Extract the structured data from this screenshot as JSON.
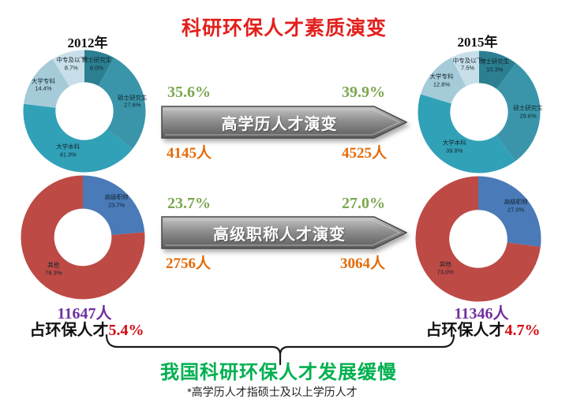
{
  "title": {
    "text": "科研环保人才素质演变"
  },
  "years": {
    "left": "2012年",
    "right": "2015年"
  },
  "arrows": [
    {
      "label": "高学历人才演变",
      "left_pct": "35.6%",
      "right_pct": "39.9%",
      "left_count": "4145人",
      "right_count": "4525人"
    },
    {
      "label": "高级职称人才演变",
      "left_pct": "23.7%",
      "right_pct": "27.0%",
      "left_count": "2756人",
      "right_count": "3064人"
    }
  ],
  "totals": {
    "left": {
      "count": "11647人",
      "share_label": "占环保人才",
      "share_value": "5.4%"
    },
    "right": {
      "count": "11346人",
      "share_label": "占环保人才",
      "share_value": "4.7%"
    }
  },
  "conclusion": "我国科研环保人才发展缓慢",
  "footnote": "*高学历人才指硕士及以上学历人才",
  "palette": {
    "title_red": "#e2201c",
    "pct_green": "#7ca750",
    "count_orange": "#e36c09",
    "total_purple": "#7030a0",
    "share_red": "#d20a10",
    "conclusion_green": "#00b050",
    "arrow_gray": "#8f8f8f"
  },
  "chart_data": [
    {
      "type": "pie",
      "title": "2012年",
      "hole": 0.47,
      "legend_position": "none",
      "labels": [
        "博士研究生",
        "硕士研究生",
        "大学本科",
        "大学专科",
        "中专及以下"
      ],
      "values": [
        8.0,
        27.6,
        41.3,
        14.4,
        8.7
      ],
      "colors": [
        "#2b7f91",
        "#3a95aa",
        "#31a1b7",
        "#a5cbd9",
        "#c8dfe9"
      ]
    },
    {
      "type": "pie",
      "title": "2015年",
      "hole": 0.47,
      "legend_position": "none",
      "labels": [
        "博士研究生",
        "硕士研究生",
        "大学本科",
        "大学专科",
        "中专及以下"
      ],
      "values": [
        10.3,
        29.6,
        39.8,
        12.8,
        7.5
      ],
      "colors": [
        "#2b7f91",
        "#3a95aa",
        "#31a1b7",
        "#a5cbd9",
        "#c8dfe9"
      ]
    },
    {
      "type": "pie",
      "title": "2012年",
      "hole": 0.46,
      "legend_position": "none",
      "labels": [
        "高级职称",
        "其他"
      ],
      "values": [
        23.7,
        76.3
      ],
      "colors": [
        "#4a7ab8",
        "#bd4a45"
      ]
    },
    {
      "type": "pie",
      "title": "2015年",
      "hole": 0.46,
      "legend_position": "none",
      "labels": [
        "高级职称",
        "其他"
      ],
      "values": [
        27.0,
        73.0
      ],
      "colors": [
        "#4a7ab8",
        "#bd4a45"
      ]
    }
  ]
}
